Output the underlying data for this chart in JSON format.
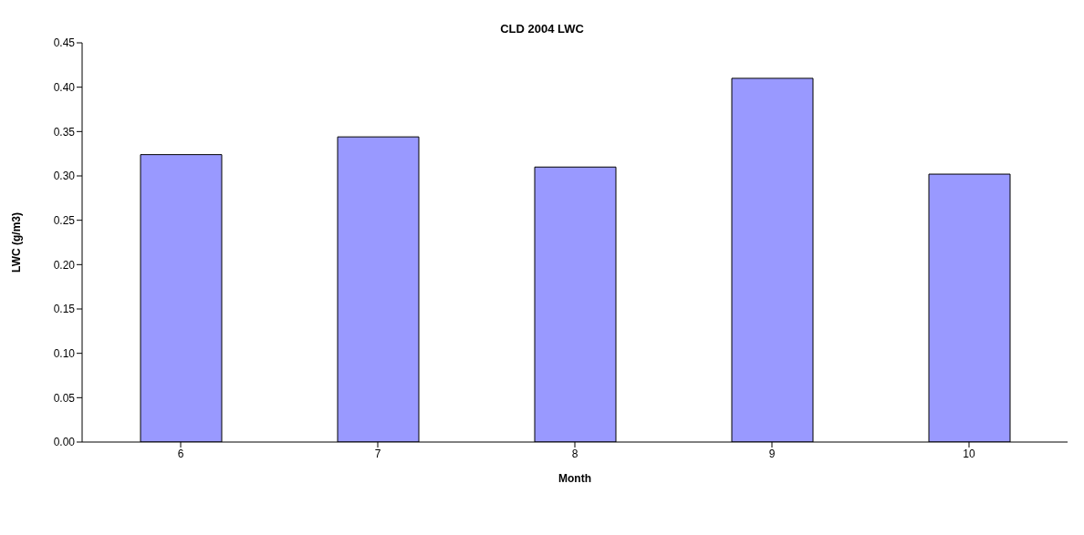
{
  "chart_data": {
    "type": "bar",
    "title": "CLD 2004 LWC",
    "xlabel": "Month",
    "ylabel": "LWC (g/m3)",
    "categories": [
      "6",
      "7",
      "8",
      "9",
      "10"
    ],
    "values": [
      0.324,
      0.344,
      0.31,
      0.41,
      0.302
    ],
    "color": "#9999ff",
    "ylim": [
      0,
      0.45
    ],
    "yticks": [
      {
        "value": 0,
        "label": "0.00"
      },
      {
        "value": 0.05,
        "label": "0.05"
      },
      {
        "value": 0.1,
        "label": "0.10"
      },
      {
        "value": 0.15,
        "label": "0.15"
      },
      {
        "value": 0.2,
        "label": "0.20"
      },
      {
        "value": 0.25,
        "label": "0.25"
      },
      {
        "value": 0.3,
        "label": "0.30"
      },
      {
        "value": 0.35,
        "label": "0.35"
      },
      {
        "value": 0.4,
        "label": "0.40"
      },
      {
        "value": 0.45,
        "label": "0.45"
      }
    ],
    "grid": false,
    "legend": false
  }
}
